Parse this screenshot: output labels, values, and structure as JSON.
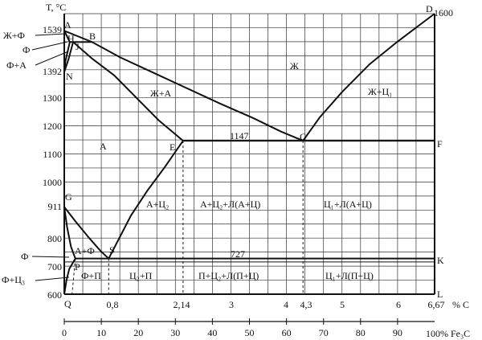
{
  "chart_data": {
    "type": "phase_diagram",
    "title": "",
    "y_axis": {
      "label": "T, °C",
      "ylim": [
        600,
        1600
      ],
      "ticks": [
        {
          "value": 700,
          "label": "700"
        },
        {
          "value": 800,
          "label": "800"
        },
        {
          "value": 911,
          "label": "911"
        },
        {
          "value": 1000,
          "label": "1000"
        },
        {
          "value": 1100,
          "label": "1100"
        },
        {
          "value": 1200,
          "label": "1200"
        },
        {
          "value": 1300,
          "label": "1300"
        },
        {
          "value": 1392,
          "label": "1392"
        },
        {
          "value": 1539,
          "label": "1539"
        },
        {
          "value": 600,
          "label": "600"
        }
      ]
    },
    "x_axis": {
      "label": "% C",
      "xlim": [
        0,
        6.67
      ],
      "ticks": [
        {
          "value": 0.8,
          "label": "0,8"
        },
        {
          "value": 2.14,
          "label": "2,14"
        },
        {
          "value": 3,
          "label": "3"
        },
        {
          "value": 4,
          "label": "4"
        },
        {
          "value": 4.3,
          "label": "4,3"
        },
        {
          "value": 5,
          "label": "5"
        },
        {
          "value": 6,
          "label": "6"
        },
        {
          "value": 6.67,
          "label": "6,67"
        }
      ]
    },
    "x2_axis": {
      "label": "100% Fe₃C",
      "ticks": [
        "0",
        "10",
        "20",
        "30",
        "40",
        "50",
        "60",
        "70",
        "80",
        "90"
      ]
    },
    "points": [
      {
        "name": "A",
        "c": 0,
        "t": 1539
      },
      {
        "name": "H",
        "c": 0.1,
        "t": 1499
      },
      {
        "name": "B",
        "c": 0.5,
        "t": 1499
      },
      {
        "name": "J",
        "c": 0.16,
        "t": 1499
      },
      {
        "name": "N",
        "c": 0,
        "t": 1392
      },
      {
        "name": "E",
        "c": 2.14,
        "t": 1147
      },
      {
        "name": "C",
        "c": 4.3,
        "t": 1147
      },
      {
        "name": "F",
        "c": 6.67,
        "t": 1147
      },
      {
        "name": "D",
        "c": 6.67,
        "t": 1600
      },
      {
        "name": "G",
        "c": 0,
        "t": 911
      },
      {
        "name": "P",
        "c": 0.02,
        "t": 727
      },
      {
        "name": "S",
        "c": 0.8,
        "t": 727
      },
      {
        "name": "K",
        "c": 6.67,
        "t": 727
      },
      {
        "name": "Q",
        "c": 0,
        "t": 600
      },
      {
        "name": "L",
        "c": 6.67,
        "t": 600
      }
    ],
    "point_labels": {
      "A": "A",
      "H": "H",
      "B": "B",
      "J": "J",
      "N": "N",
      "E": "E",
      "C": "C",
      "F": "F",
      "D": "D",
      "G": "G",
      "P": "P",
      "S": "S",
      "K": "K",
      "Q": "Q",
      "L": "L"
    },
    "special_labels": {
      "D_temp": "1600",
      "eutectic_temp": "1147",
      "eutectoid_temp": "727"
    },
    "phase_regions": {
      "liquid": "Ж",
      "liquid_austenite": "Ж+А",
      "liquid_cementite1": "Ж+Ц₁",
      "austenite": "А",
      "austenite_cementite2": "А+Ц₂",
      "a_c2_ledeburite": "А+Ц₂+Л(А+Ц)",
      "c1_ledeburite_a": "Ц₁+Л(А+Ц)",
      "ferrite_austenite": "А+Ф",
      "ferrite_pearlite": "Ф+П",
      "c2_pearlite": "Ц₂+П",
      "p_c2_ledeburite": "П+Ц₂+Л(П+Ц)",
      "c1_ledeburite_p": "Ц₁+Л(П+Ц)"
    },
    "side_labels": {
      "liquid_ferrite": "Ж+Ф",
      "ferrite_delta": "Ф",
      "ferrite_austenite_delta": "Ф+А",
      "ferrite": "Ф",
      "ferrite_cementite3": "Ф+Ц₃"
    }
  }
}
